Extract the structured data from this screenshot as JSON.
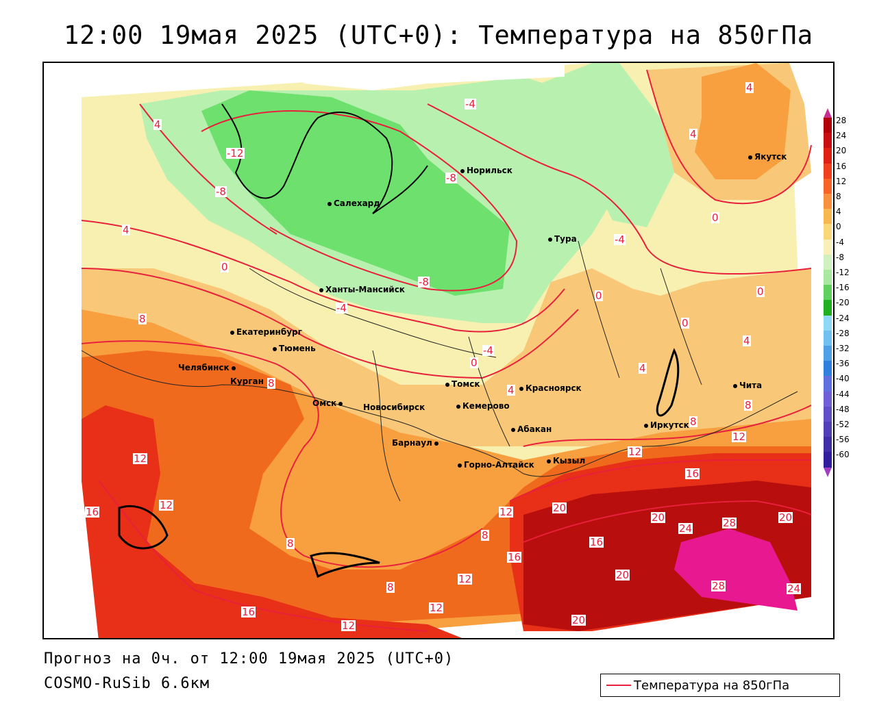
{
  "title": "12:00 19мая 2025 (UTC+0): Температура на 850гПа",
  "footer": {
    "line1": "Прогноз на 0ч. от 12:00 19мая 2025 (UTC+0)",
    "line2": "COSMO-RuSib 6.6км"
  },
  "legend": {
    "label": "Температура на 850гПа",
    "line_color": "#e8203c"
  },
  "colors": {
    "isoline": "#e8203c",
    "green_cold": "#6ee06e",
    "green_light": "#b8f0b0",
    "pale_yellow": "#f8f0b0",
    "light_orange": "#f8c878",
    "orange": "#f8a040",
    "dark_orange": "#f06a1e",
    "red": "#e83018",
    "dark_red": "#b80e0e",
    "magenta": "#e81890"
  },
  "cities": [
    {
      "name": "Салехард"
    },
    {
      "name": "Норильск"
    },
    {
      "name": "Якутск"
    },
    {
      "name": "Тура"
    },
    {
      "name": "Ханты-Мансийск"
    },
    {
      "name": "Екатеринбург"
    },
    {
      "name": "Тюмень"
    },
    {
      "name": "Челябинск"
    },
    {
      "name": "Курган"
    },
    {
      "name": "Омск"
    },
    {
      "name": "Новосибирск"
    },
    {
      "name": "Томск"
    },
    {
      "name": "Кемерово"
    },
    {
      "name": "Красноярск"
    },
    {
      "name": "Абакан"
    },
    {
      "name": "Барнаул"
    },
    {
      "name": "Горно-Алтайск"
    },
    {
      "name": "Кызыл"
    },
    {
      "name": "Иркутск"
    },
    {
      "name": "Чита"
    }
  ],
  "isotherm_labels": [
    "4",
    "4",
    "-4",
    "-12",
    "-8",
    "-8",
    "4",
    "0",
    "-4",
    "0",
    "4",
    "-8",
    "-4",
    "-4",
    "8",
    "0",
    "0",
    "4",
    "4",
    "8",
    "4",
    "8",
    "8",
    "12",
    "12",
    "12",
    "16",
    "16",
    "12",
    "8",
    "8",
    "12",
    "16",
    "12",
    "20",
    "20",
    "16",
    "20",
    "24",
    "28",
    "20",
    "28",
    "24",
    "12",
    "8",
    "16",
    "12",
    "20",
    "0",
    "0"
  ],
  "colorbar": {
    "ticks": [
      "28",
      "24",
      "20",
      "16",
      "12",
      "8",
      "4",
      "0",
      "-4",
      "-8",
      "-12",
      "-16",
      "-20",
      "-24",
      "-28",
      "-32",
      "-36",
      "-40",
      "-44",
      "-48",
      "-52",
      "-56",
      "-60"
    ],
    "colors": [
      "#b0000a",
      "#c80e12",
      "#e02014",
      "#f0401e",
      "#f86428",
      "#f89040",
      "#f8b850",
      "#f8d878",
      "#f8f0b8",
      "#d0f0c0",
      "#a8e8a0",
      "#60d060",
      "#20b020",
      "#90d8f8",
      "#70c0f0",
      "#50a0e8",
      "#3080e0",
      "#6070e0",
      "#7060d8",
      "#6050c8",
      "#5040b8",
      "#4030a8",
      "#3020a0"
    ],
    "top_color": "#c83090",
    "bottom_color": "#a040c0"
  }
}
